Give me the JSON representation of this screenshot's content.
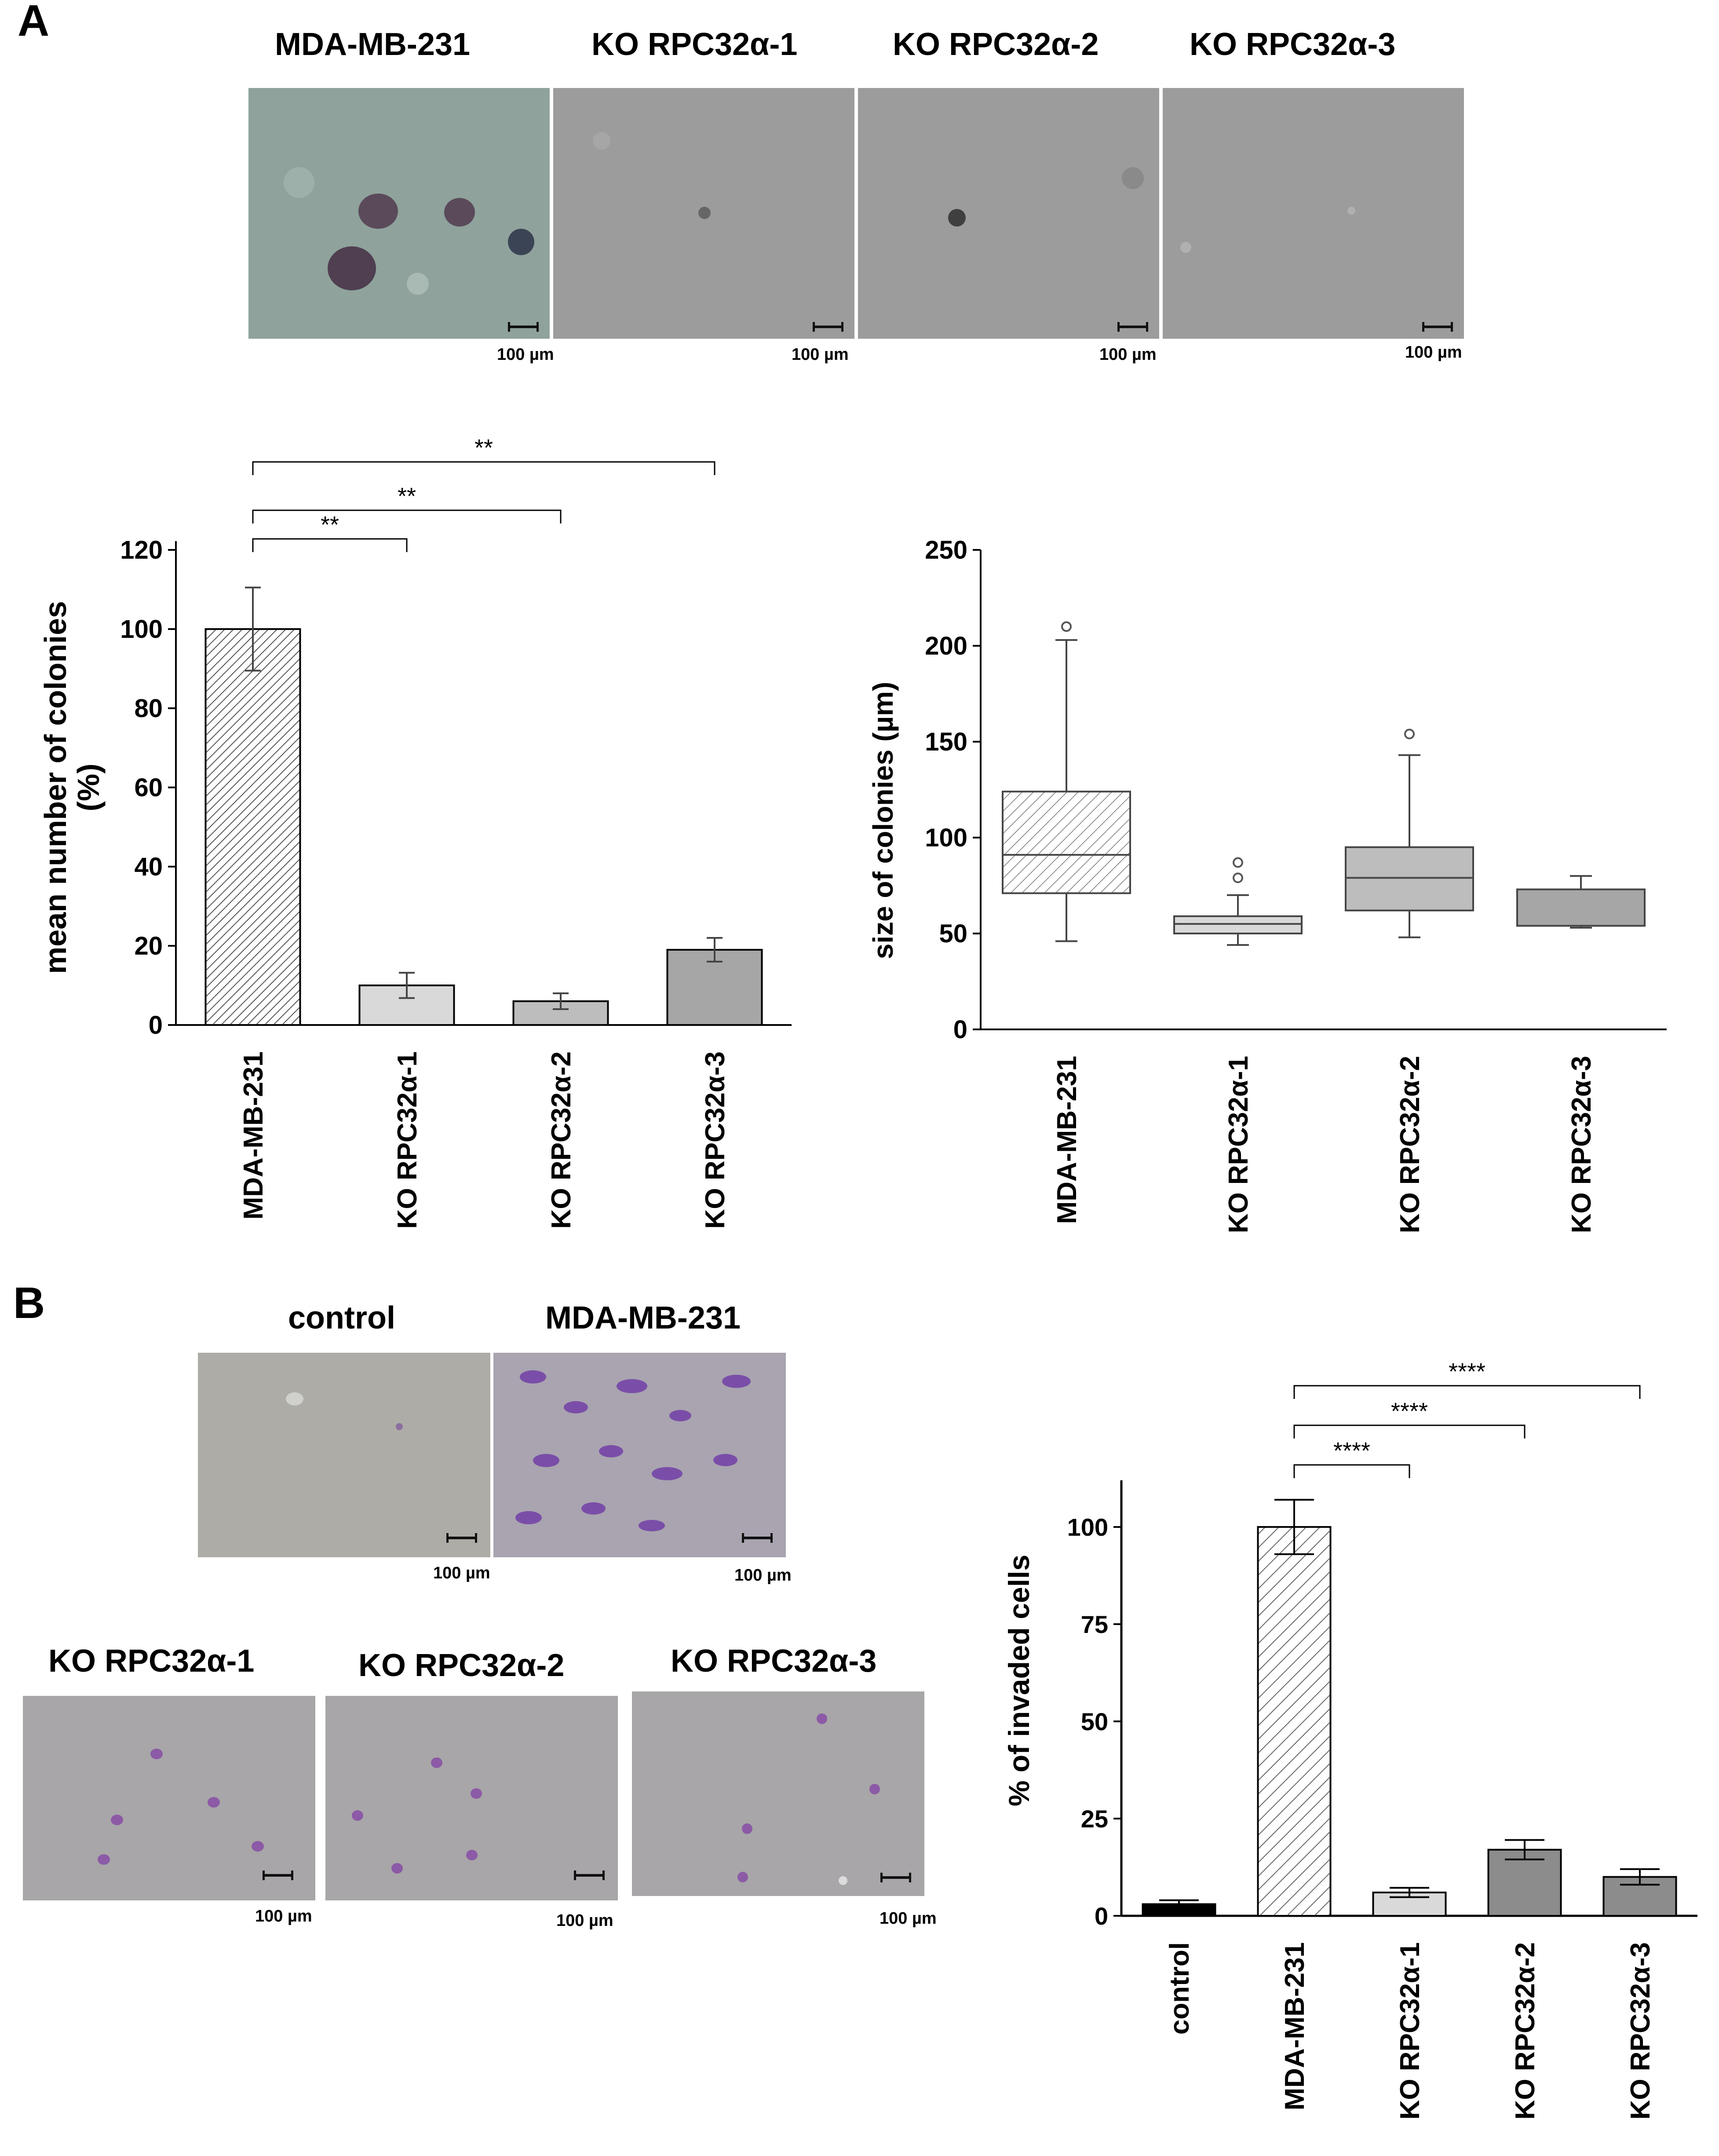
{
  "panels": {
    "a_label": "A",
    "b_label": "B"
  },
  "micrographs_a": {
    "titles": [
      "MDA-MB-231",
      "KO RPC32α-1",
      "KO RPC32α-2",
      "KO RPC32α-3"
    ],
    "scale_labels": [
      "100 µm",
      "100 µm",
      "100 µm",
      "100 µm"
    ]
  },
  "micrographs_b": {
    "titles": [
      "control",
      "MDA-MB-231",
      "KO RPC32α-1",
      "KO RPC32α-2",
      "KO RPC32α-3"
    ],
    "scale_labels": [
      "100 µm",
      "100 µm",
      "100 µm",
      "100 µm",
      "100 µm"
    ]
  },
  "colors": {
    "mda_fill": "hatched",
    "ko1_fill": "#d9d9d9",
    "ko2_fill": "#bdbdbd",
    "ko3_fill": "#a6a6a6",
    "control_fill": "#000000",
    "stain": "#7a4ea8"
  },
  "chart_data": [
    {
      "type": "bar",
      "panel": "A",
      "categories": [
        "MDA-MB-231",
        "KO RPC32α-1",
        "KO RPC32α-2",
        "KO RPC32α-3"
      ],
      "values": [
        100,
        10,
        6,
        19
      ],
      "errors": [
        10.5,
        3.2,
        2,
        3
      ],
      "ylabel": "mean number of colonies\n(%)",
      "ylim": [
        0,
        120
      ],
      "yticks": [
        0,
        20,
        40,
        60,
        80,
        100,
        120
      ],
      "significance": [
        {
          "from": 0,
          "to": 1,
          "label": "**"
        },
        {
          "from": 0,
          "to": 2,
          "label": "**"
        },
        {
          "from": 0,
          "to": 3,
          "label": "**"
        }
      ]
    },
    {
      "type": "box",
      "panel": "A",
      "categories": [
        "MDA-MB-231",
        "KO RPC32α-1",
        "KO RPC32α-2",
        "KO RPC32α-3"
      ],
      "boxes": [
        {
          "min": 46,
          "q1": 71,
          "median": 91,
          "q3": 124,
          "max": 203,
          "outliers": [
            210
          ]
        },
        {
          "min": 44,
          "q1": 50,
          "median": 55,
          "q3": 59,
          "max": 70,
          "outliers": [
            79,
            87
          ]
        },
        {
          "min": 48,
          "q1": 62,
          "median": 79,
          "q3": 95,
          "max": 143,
          "outliers": [
            154
          ]
        },
        {
          "min": 53,
          "q1": 54,
          "median": 54,
          "q3": 73,
          "max": 80,
          "outliers": []
        }
      ],
      "ylabel": "size of colonies (µm)",
      "ylim": [
        0,
        250
      ],
      "yticks": [
        0,
        50,
        100,
        150,
        200,
        250
      ]
    },
    {
      "type": "bar",
      "panel": "B",
      "categories": [
        "control",
        "MDA-MB-231",
        "KO RPC32α-1",
        "KO RPC32α-2",
        "KO RPC32α-3"
      ],
      "values": [
        3,
        100,
        6,
        17,
        10
      ],
      "errors": [
        1,
        7,
        1.2,
        2.5,
        2
      ],
      "ylabel": "% of invaded cells",
      "ylim": [
        0,
        112
      ],
      "yticks": [
        0,
        25,
        50,
        75,
        100
      ],
      "significance": [
        {
          "from": 1,
          "to": 2,
          "label": "****"
        },
        {
          "from": 1,
          "to": 3,
          "label": "****"
        },
        {
          "from": 1,
          "to": 4,
          "label": "****"
        }
      ]
    }
  ]
}
